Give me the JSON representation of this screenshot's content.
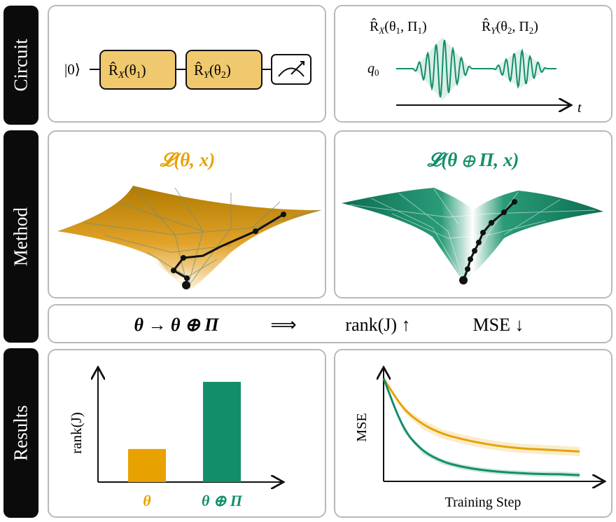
{
  "sections": {
    "circuit": "Circuit",
    "method": "Method",
    "results": "Results"
  },
  "circuit": {
    "ket": "|0⟩",
    "gate1": {
      "op": "R̂",
      "sub": "X",
      "arg": "(θ",
      "argsub": "1",
      "close": ")"
    },
    "gate2": {
      "op": "R̂",
      "sub": "Y",
      "arg": "(θ",
      "argsub": "2",
      "close": ")"
    },
    "pulse1_label": {
      "op": "R̂",
      "sub": "X",
      "arg": "(θ",
      "a1": "1",
      "mid": ", Π",
      "a2": "1",
      "close": ")"
    },
    "pulse2_label": {
      "op": "R̂",
      "sub": "Y",
      "arg": "(θ",
      "a1": "2",
      "mid": ", Π",
      "a2": "2",
      "close": ")"
    },
    "qubit": "q",
    "qubit_sub": "0",
    "time_axis": "t"
  },
  "method": {
    "left_title": "𝓛(θ, x)",
    "right_title": "𝓛(θ ⊕ Π, x)",
    "summary": {
      "left": "θ → θ ⊕ Π",
      "implies": "⟹",
      "rank": "rank(J) ↑",
      "mse": "MSE ↓"
    }
  },
  "results": {
    "bar_chart": {
      "chart_data": {
        "type": "bar",
        "categories": [
          "θ",
          "θ ⊕ Π"
        ],
        "values": [
          0.33,
          1.0
        ],
        "ylabel": "rank(J)",
        "xlabel": "",
        "colors": [
          "#e8a200",
          "#138e6a"
        ]
      }
    },
    "line_chart": {
      "chart_data": {
        "type": "line",
        "xlabel": "Training Step",
        "ylabel": "MSE",
        "series": [
          {
            "color": "#e8a200",
            "x": [
              0,
              0.1,
              0.2,
              0.3,
              0.4,
              0.5,
              0.6,
              0.7,
              0.8,
              0.9,
              1.0
            ],
            "values": [
              1.0,
              0.7,
              0.55,
              0.46,
              0.41,
              0.37,
              0.34,
              0.32,
              0.31,
              0.3,
              0.29
            ]
          },
          {
            "color": "#138e6a",
            "x": [
              0,
              0.1,
              0.2,
              0.3,
              0.4,
              0.5,
              0.6,
              0.7,
              0.8,
              0.9,
              1.0
            ],
            "values": [
              1.0,
              0.5,
              0.29,
              0.19,
              0.14,
              0.11,
              0.09,
              0.08,
              0.07,
              0.07,
              0.06
            ]
          }
        ]
      }
    }
  },
  "colors": {
    "gold": "#e8a200",
    "green": "#138e6a",
    "gate_fill": "#f0c86e"
  }
}
